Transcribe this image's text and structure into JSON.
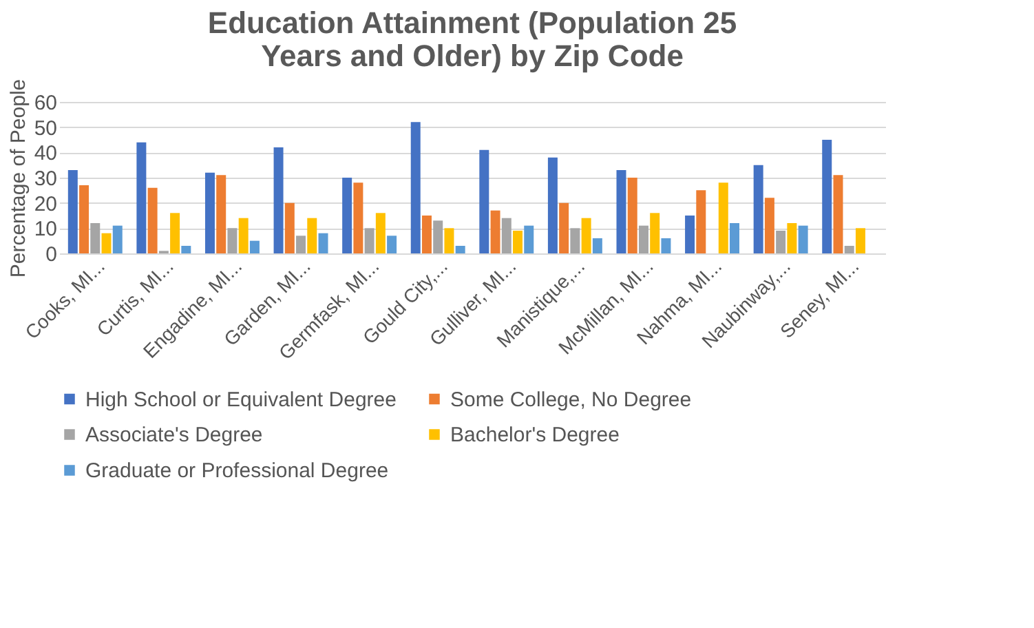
{
  "chart_data": {
    "type": "bar",
    "title": "Education Attainment (Population 25 Years and Older) by Zip Code",
    "ylabel": "Percentage of People",
    "categories": [
      "Cooks, MI...",
      "Curtis, MI...",
      "Engadine, MI...",
      "Garden, MI...",
      "Germfask, MI...",
      "Gould City,...",
      "Gulliver, MI...",
      "Manistique,...",
      "McMillan, MI...",
      "Nahma, MI...",
      "Naubinway,...",
      "Seney, MI..."
    ],
    "series": [
      {
        "name": "High School or Equivalent Degree",
        "color": "#4472c4",
        "values": [
          33,
          44,
          32,
          42,
          30,
          52,
          41,
          38,
          33,
          15,
          35,
          45
        ]
      },
      {
        "name": "Some College, No Degree",
        "color": "#ed7d31",
        "values": [
          27,
          26,
          31,
          20,
          28,
          15,
          17,
          20,
          30,
          25,
          22,
          31
        ]
      },
      {
        "name": "Associate's Degree",
        "color": "#a5a5a5",
        "values": [
          12,
          1,
          10,
          7,
          10,
          13,
          14,
          10,
          11,
          0,
          9,
          3
        ]
      },
      {
        "name": "Bachelor's Degree",
        "color": "#ffc000",
        "values": [
          8,
          16,
          14,
          14,
          16,
          10,
          9,
          14,
          16,
          28,
          12,
          10
        ]
      },
      {
        "name": "Graduate or Professional Degree",
        "color": "#5b9bd5",
        "values": [
          11,
          3,
          5,
          8,
          7,
          3,
          11,
          6,
          6,
          12,
          11,
          0
        ]
      }
    ],
    "ylim": [
      0,
      60
    ],
    "yticks": [
      0,
      10,
      20,
      30,
      40,
      50,
      60
    ],
    "grid": "y",
    "legend": "bottom"
  }
}
